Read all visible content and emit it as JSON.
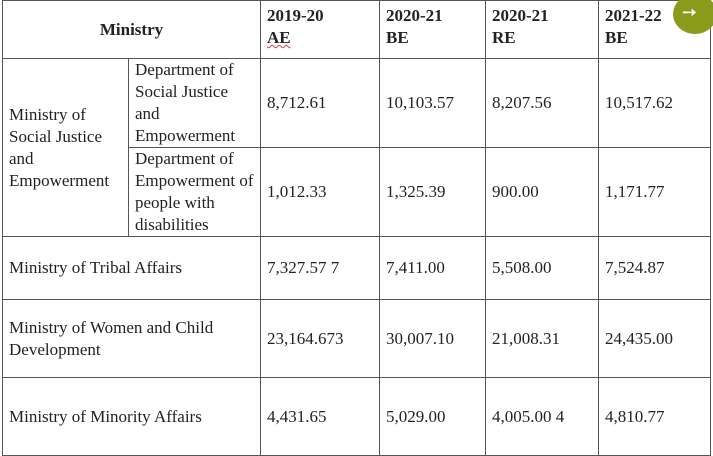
{
  "header": {
    "ministry": "Ministry",
    "col1": [
      "2019-20",
      "AE"
    ],
    "col2": [
      "2020-21",
      "BE"
    ],
    "col3": [
      "2020-21",
      "RE"
    ],
    "col4": [
      "2021-22",
      "BE"
    ]
  },
  "rows": {
    "msje": {
      "ministry": "Ministry of Social Justice and Empowerment",
      "dept1": {
        "name": "Department of Social Justice and Empowerment",
        "values": [
          "8,712.61",
          "10,103.57",
          "8,207.56",
          "10,517.62"
        ]
      },
      "dept2": {
        "name": "Department of Empowerment of people with disabilities",
        "values": [
          "1,012.33",
          "1,325.39",
          "900.00",
          "1,171.77"
        ]
      }
    },
    "tribal": {
      "ministry": "Ministry of Tribal Affairs",
      "values": [
        "7,327.57 7",
        "7,411.00",
        "5,508.00",
        "7,524.87"
      ]
    },
    "wcd": {
      "ministry": "Ministry of Women and Child Development",
      "values": [
        "23,164.673",
        "30,007.10",
        "21,008.31",
        "24,435.00"
      ]
    },
    "minority": {
      "ministry": "Ministry of Minority Affairs",
      "values": [
        "4,431.65",
        "5,029.00",
        "4,005.00 4",
        "4,810.77"
      ]
    }
  },
  "overlay": {
    "icon": "expand-arrow-icon",
    "color": "#8a9a1a"
  }
}
